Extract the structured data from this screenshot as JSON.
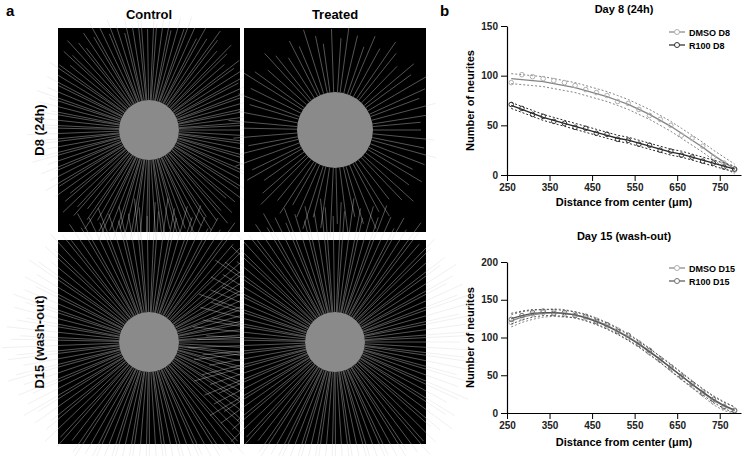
{
  "panel_a": {
    "label": "a",
    "columns": [
      "Control",
      "Treated"
    ],
    "rows": [
      "D8 (24h)",
      "D15 (wash-out)"
    ]
  },
  "panel_b_label": "b",
  "chart_data": [
    {
      "type": "scatter",
      "title": "Day 8 (24h)",
      "x_label": "Distance from center (μm)",
      "y_label": "Number of neurites",
      "x": [
        260,
        285,
        310,
        335,
        360,
        385,
        410,
        435,
        460,
        485,
        510,
        535,
        560,
        585,
        610,
        635,
        660,
        685,
        710,
        735,
        760,
        785
      ],
      "xlim": [
        250,
        800
      ],
      "xticks": [
        250,
        350,
        450,
        550,
        650,
        750
      ],
      "ylim": [
        0,
        150
      ],
      "yticks": [
        0,
        50,
        100,
        150
      ],
      "legend": "upper right",
      "series": [
        {
          "name": "DMSO D8",
          "color": "#b0b0b0",
          "marker": "circle",
          "values": [
            93,
            101,
            99,
            97,
            95,
            93,
            90,
            86,
            83,
            80,
            74,
            72,
            66,
            60,
            56,
            50,
            40,
            37,
            29,
            18,
            12,
            5
          ],
          "fit": [
            97,
            96,
            95,
            94,
            92,
            90,
            88,
            85,
            82,
            79,
            75,
            71,
            66,
            61,
            55,
            49,
            42,
            35,
            28,
            20,
            13,
            6
          ],
          "ci_lower": [
            92,
            91,
            90,
            89,
            87,
            85,
            83,
            80,
            77,
            74,
            70,
            66,
            61,
            56,
            50,
            44,
            37,
            30,
            23,
            15,
            8,
            1
          ],
          "ci_upper": [
            102,
            101,
            100,
            99,
            97,
            95,
            93,
            90,
            87,
            84,
            80,
            76,
            71,
            66,
            60,
            54,
            47,
            40,
            33,
            25,
            18,
            11
          ]
        },
        {
          "name": "R100 D8",
          "color": "#333333",
          "marker": "circle",
          "values": [
            71,
            67,
            61,
            59,
            54,
            52,
            48,
            47,
            42,
            41,
            36,
            35,
            31,
            30,
            25,
            24,
            20,
            18,
            14,
            12,
            8,
            6
          ],
          "fit": [
            70,
            66,
            62,
            58,
            55,
            52,
            49,
            46,
            43,
            40,
            37,
            35,
            32,
            29,
            26,
            23,
            21,
            18,
            15,
            12,
            9,
            6
          ],
          "ci_lower": [
            67,
            63,
            59,
            55,
            52,
            49,
            46,
            43,
            40,
            37,
            34,
            32,
            29,
            26,
            23,
            20,
            18,
            15,
            12,
            9,
            6,
            3
          ],
          "ci_upper": [
            73,
            69,
            65,
            61,
            58,
            55,
            52,
            49,
            46,
            43,
            40,
            38,
            35,
            32,
            29,
            26,
            24,
            21,
            18,
            15,
            12,
            9
          ]
        }
      ]
    },
    {
      "type": "scatter",
      "title": "Day 15 (wash-out)",
      "x_label": "Distance from center (μm)",
      "y_label": "Number of neurites",
      "x": [
        260,
        285,
        310,
        335,
        360,
        385,
        410,
        435,
        460,
        485,
        510,
        535,
        560,
        585,
        610,
        635,
        660,
        685,
        710,
        735,
        760,
        785
      ],
      "xlim": [
        250,
        800
      ],
      "xticks": [
        250,
        350,
        450,
        550,
        650,
        750
      ],
      "ylim": [
        0,
        200
      ],
      "yticks": [
        0,
        50,
        100,
        150,
        200
      ],
      "legend": "upper right",
      "series": [
        {
          "name": "DMSO D15",
          "color": "#b0b0b0",
          "marker": "circle",
          "values": [
            120,
            126,
            131,
            133,
            134,
            131,
            131,
            126,
            123,
            115,
            110,
            100,
            93,
            80,
            72,
            59,
            50,
            37,
            28,
            15,
            9,
            4
          ],
          "fit": [
            122,
            127,
            130,
            132,
            133,
            132,
            130,
            127,
            122,
            116,
            109,
            101,
            92,
            82,
            71,
            60,
            49,
            38,
            27,
            17,
            9,
            3
          ],
          "ci_lower": [
            114,
            120,
            124,
            127,
            128,
            127,
            126,
            123,
            118,
            112,
            105,
            97,
            88,
            78,
            67,
            55,
            44,
            33,
            22,
            11,
            3,
            0
          ],
          "ci_upper": [
            130,
            134,
            136,
            137,
            138,
            137,
            134,
            131,
            126,
            120,
            113,
            105,
            96,
            86,
            75,
            65,
            54,
            43,
            32,
            23,
            15,
            8
          ]
        },
        {
          "name": "R100 D15",
          "color": "#707070",
          "marker": "circle",
          "values": [
            124,
            129,
            133,
            135,
            132,
            133,
            129,
            128,
            121,
            117,
            108,
            103,
            91,
            83,
            70,
            61,
            48,
            39,
            26,
            18,
            8,
            3
          ],
          "fit": [
            125,
            129,
            132,
            133,
            133,
            132,
            130,
            126,
            121,
            115,
            108,
            100,
            91,
            81,
            71,
            60,
            49,
            38,
            28,
            18,
            10,
            4
          ],
          "ci_lower": [
            118,
            123,
            127,
            129,
            129,
            128,
            126,
            122,
            117,
            111,
            104,
            96,
            87,
            77,
            67,
            56,
            45,
            34,
            24,
            14,
            6,
            0
          ],
          "ci_upper": [
            132,
            135,
            137,
            137,
            137,
            136,
            134,
            130,
            125,
            119,
            112,
            104,
            95,
            85,
            75,
            64,
            53,
            42,
            32,
            22,
            14,
            8
          ]
        }
      ]
    }
  ]
}
